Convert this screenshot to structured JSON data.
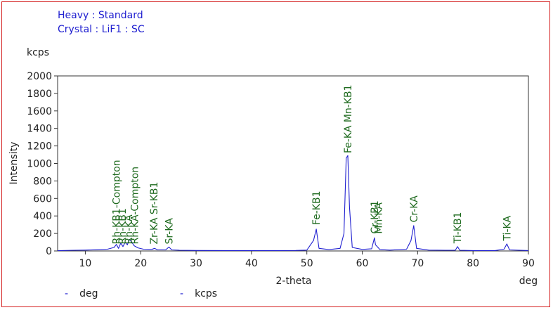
{
  "header": {
    "line1": "Heavy : Standard",
    "line2": "Crystal : LiF1 : SC"
  },
  "legend": {
    "items": [
      {
        "symbol": "-",
        "label": "deg"
      },
      {
        "symbol": "-",
        "label": "kcps"
      }
    ]
  },
  "colors": {
    "frame": "#d42020",
    "series": "#2020d0",
    "peak_label": "#1e6a1e",
    "axes": "#333333"
  },
  "chart_data": {
    "type": "line",
    "xlabel": "2-theta",
    "ylabel": "Intensity",
    "x_unit": "deg",
    "y_unit": "kcps",
    "xlim": [
      5,
      90
    ],
    "ylim": [
      0,
      2000
    ],
    "x_ticks": [
      10,
      20,
      30,
      40,
      50,
      60,
      70,
      80,
      90
    ],
    "y_ticks": [
      0,
      200,
      400,
      600,
      800,
      1000,
      1200,
      1400,
      1600,
      1800,
      2000
    ],
    "grid": false,
    "series": [
      {
        "x": [
          5,
          8,
          10,
          12,
          14,
          15.2,
          15.6,
          16.0,
          16.4,
          16.8,
          17.2,
          17.6,
          17.9,
          18.3,
          18.8,
          19.5,
          20.5,
          22.0,
          22.5,
          23.0,
          24.5,
          25.1,
          25.6,
          27,
          30,
          35,
          40,
          45,
          48,
          50,
          51.2,
          51.7,
          52.2,
          54,
          56,
          56.7,
          57.1,
          57.4,
          57.7,
          58.2,
          60,
          61.7,
          62.2,
          62.4,
          62.7,
          63.2,
          65,
          68,
          68.8,
          69.3,
          69.8,
          72,
          75,
          76.8,
          77.2,
          77.6,
          80,
          84,
          85.6,
          86.1,
          86.6,
          90
        ],
        "y": [
          3,
          8,
          10,
          14,
          20,
          40,
          75,
          30,
          90,
          50,
          100,
          70,
          130,
          110,
          60,
          35,
          20,
          18,
          30,
          14,
          12,
          45,
          12,
          8,
          6,
          5,
          5,
          5,
          6,
          10,
          120,
          250,
          30,
          15,
          30,
          200,
          1060,
          1090,
          500,
          40,
          18,
          25,
          150,
          70,
          50,
          15,
          10,
          20,
          120,
          290,
          30,
          10,
          8,
          8,
          50,
          8,
          5,
          5,
          20,
          80,
          12,
          5
        ]
      }
    ],
    "peak_labels": [
      {
        "x": 15.6,
        "y": 60,
        "text": "Rh-KB1-Compton"
      },
      {
        "x": 16.7,
        "y": 60,
        "text": "Rh-KB1"
      },
      {
        "x": 17.8,
        "y": 60,
        "text": "Rh-KA"
      },
      {
        "x": 18.9,
        "y": 60,
        "text": "Rh-KA-Compton"
      },
      {
        "x": 22.4,
        "y": 60,
        "text": "Zr-KA Sr-KB1"
      },
      {
        "x": 25.1,
        "y": 60,
        "text": "Sr-KA"
      },
      {
        "x": 51.7,
        "y": 280,
        "text": "Fe-KB1"
      },
      {
        "x": 57.4,
        "y": 1100,
        "text": "Fe-KA Mn-KB1"
      },
      {
        "x": 62.2,
        "y": 180,
        "text": "Cr-KB1"
      },
      {
        "x": 62.9,
        "y": 180,
        "text": "Mn-KA"
      },
      {
        "x": 69.3,
        "y": 310,
        "text": "Cr-KA"
      },
      {
        "x": 77.2,
        "y": 70,
        "text": "Ti-KB1"
      },
      {
        "x": 86.1,
        "y": 100,
        "text": "Ti-KA"
      }
    ]
  }
}
